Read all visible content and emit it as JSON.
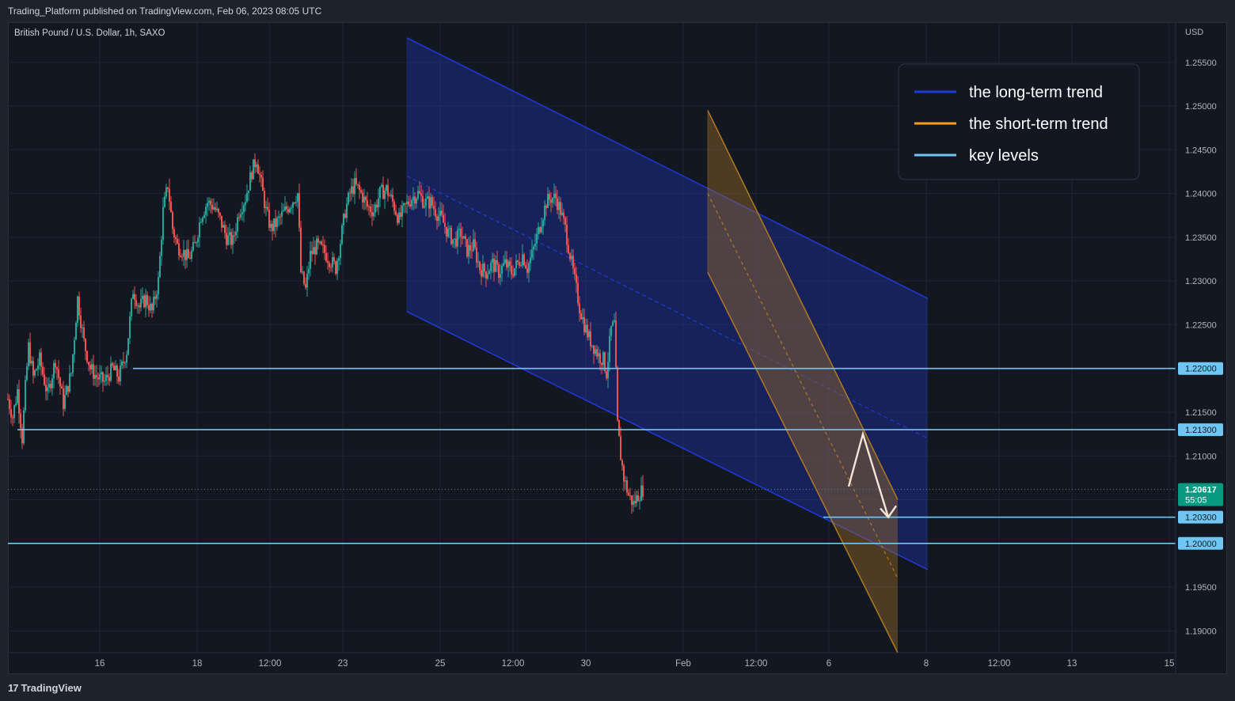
{
  "header": {
    "published": "Trading_Platform published on TradingView.com, Feb 06, 2023 08:05 UTC"
  },
  "footer": {
    "brand": "TradingView",
    "logo_glyph": "17"
  },
  "colors": {
    "up": "#26a69a",
    "down": "#ef5350",
    "long_trend": "#1e3bd6",
    "short_trend": "#f59e1c",
    "key_level": "#6fc6f2",
    "price_badge": "#089981"
  },
  "chart_data": {
    "type": "candlestick",
    "title": "British Pound / U.S. Dollar, 1h, SAXO",
    "currency": "USD",
    "ylim": [
      1.1875,
      1.2595
    ],
    "y_ticks": [
      "1.19000",
      "1.19500",
      "1.20000",
      "1.20500",
      "1.21000",
      "1.21500",
      "1.22000",
      "1.22500",
      "1.23000",
      "1.23500",
      "1.24000",
      "1.24500",
      "1.25000",
      "1.25500"
    ],
    "x_ticks": [
      "16",
      "18",
      "12:00",
      "23",
      "25",
      "12:00",
      "30",
      "Feb",
      "12:00",
      "6",
      "8",
      "12:00",
      "13",
      "15"
    ],
    "price_path": [
      [
        0,
        1.2165
      ],
      [
        6,
        1.2145
      ],
      [
        12,
        1.2175
      ],
      [
        18,
        1.212
      ],
      [
        22,
        1.2178
      ],
      [
        26,
        1.2225
      ],
      [
        32,
        1.219
      ],
      [
        40,
        1.221
      ],
      [
        50,
        1.217
      ],
      [
        60,
        1.221
      ],
      [
        70,
        1.216
      ],
      [
        80,
        1.2195
      ],
      [
        88,
        1.228
      ],
      [
        96,
        1.223
      ],
      [
        104,
        1.22
      ],
      [
        112,
        1.219
      ],
      [
        122,
        1.2185
      ],
      [
        132,
        1.22
      ],
      [
        140,
        1.219
      ],
      [
        150,
        1.222
      ],
      [
        158,
        1.229
      ],
      [
        166,
        1.227
      ],
      [
        174,
        1.228
      ],
      [
        182,
        1.2265
      ],
      [
        190,
        1.23
      ],
      [
        196,
        1.238
      ],
      [
        202,
        1.241
      ],
      [
        208,
        1.236
      ],
      [
        214,
        1.234
      ],
      [
        220,
        1.2335
      ],
      [
        228,
        1.2325
      ],
      [
        236,
        1.234
      ],
      [
        244,
        1.2375
      ],
      [
        252,
        1.239
      ],
      [
        260,
        1.2385
      ],
      [
        268,
        1.237
      ],
      [
        276,
        1.235
      ],
      [
        284,
        1.2345
      ],
      [
        292,
        1.238
      ],
      [
        300,
        1.2395
      ],
      [
        308,
        1.2425
      ],
      [
        314,
        1.244
      ],
      [
        320,
        1.241
      ],
      [
        326,
        1.238
      ],
      [
        332,
        1.236
      ],
      [
        338,
        1.2365
      ],
      [
        346,
        1.2375
      ],
      [
        354,
        1.2385
      ],
      [
        362,
        1.2395
      ],
      [
        366,
        1.24
      ],
      [
        370,
        1.231
      ],
      [
        376,
        1.229
      ],
      [
        382,
        1.233
      ],
      [
        390,
        1.234
      ],
      [
        398,
        1.2335
      ],
      [
        406,
        1.2325
      ],
      [
        414,
        1.2315
      ],
      [
        420,
        1.2345
      ],
      [
        426,
        1.238
      ],
      [
        432,
        1.24
      ],
      [
        438,
        1.241
      ],
      [
        446,
        1.24
      ],
      [
        454,
        1.2385
      ],
      [
        462,
        1.238
      ],
      [
        470,
        1.24
      ],
      [
        478,
        1.2405
      ],
      [
        486,
        1.239
      ],
      [
        494,
        1.237
      ],
      [
        502,
        1.2385
      ],
      [
        510,
        1.2395
      ],
      [
        518,
        1.24
      ],
      [
        526,
        1.239
      ],
      [
        534,
        1.239
      ],
      [
        540,
        1.238
      ],
      [
        548,
        1.237
      ],
      [
        556,
        1.2355
      ],
      [
        564,
        1.2345
      ],
      [
        572,
        1.2355
      ],
      [
        580,
        1.2335
      ],
      [
        588,
        1.234
      ],
      [
        596,
        1.2315
      ],
      [
        604,
        1.231
      ],
      [
        612,
        1.232
      ],
      [
        620,
        1.231
      ],
      [
        628,
        1.232
      ],
      [
        636,
        1.231
      ],
      [
        644,
        1.232
      ],
      [
        650,
        1.233
      ],
      [
        656,
        1.2315
      ],
      [
        662,
        1.233
      ],
      [
        668,
        1.235
      ],
      [
        674,
        1.237
      ],
      [
        680,
        1.239
      ],
      [
        686,
        1.2395
      ],
      [
        692,
        1.2395
      ],
      [
        698,
        1.238
      ],
      [
        704,
        1.236
      ],
      [
        710,
        1.233
      ],
      [
        716,
        1.23
      ],
      [
        722,
        1.227
      ],
      [
        728,
        1.225
      ],
      [
        734,
        1.2235
      ],
      [
        740,
        1.2225
      ],
      [
        746,
        1.2215
      ],
      [
        752,
        1.221
      ],
      [
        756,
        1.2195
      ],
      [
        762,
        1.2245
      ],
      [
        766,
        1.225
      ],
      [
        770,
        1.2135
      ],
      [
        774,
        1.21
      ],
      [
        778,
        1.2075
      ],
      [
        784,
        1.2055
      ],
      [
        790,
        1.2045
      ],
      [
        796,
        1.2055
      ],
      [
        802,
        1.2062
      ]
    ],
    "last_price": "1.20617",
    "countdown": "55:05",
    "key_levels": [
      {
        "value": 1.22,
        "label": "1.22000"
      },
      {
        "value": 1.213,
        "label": "1.21300"
      },
      {
        "value": 1.203,
        "label": "1.20300"
      },
      {
        "value": 1.2,
        "label": "1.20000"
      }
    ],
    "long_channel": {
      "x_start": 504,
      "x_end": 1162,
      "upper": [
        1.2578,
        1.228
      ],
      "middle": [
        1.242,
        1.212
      ],
      "lower": [
        1.2265,
        1.197
      ]
    },
    "short_channel": {
      "x_start": 884,
      "x_end": 1124,
      "upper": [
        1.2495,
        1.205
      ],
      "middle": [
        1.24,
        1.196
      ],
      "lower": [
        1.231,
        1.1875
      ]
    },
    "projection": [
      [
        1062,
        1.2065
      ],
      [
        1080,
        1.2125
      ],
      [
        1112,
        1.203
      ],
      [
        1102,
        1.204
      ],
      [
        1112,
        1.203
      ],
      [
        1122,
        1.2043
      ]
    ],
    "legend_position": "top-right",
    "legend": [
      {
        "label": "the long-term trend",
        "color": "#1e3bd6"
      },
      {
        "label": "the short-term trend",
        "color": "#f59e1c"
      },
      {
        "label": "key levels",
        "color": "#6fc6f2"
      }
    ],
    "grid": true
  }
}
